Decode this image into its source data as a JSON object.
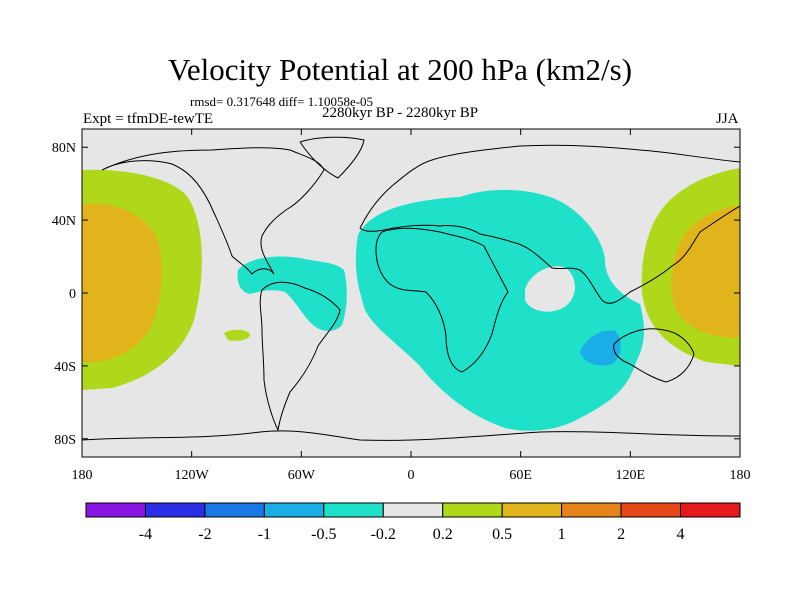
{
  "header": {
    "title": "Velocity Potential at 200 hPa (km2/s)",
    "stats": "rmsd= 0.317648 diff= 1.10058e-05",
    "experiment": "Expt = tfmDE-tewTE",
    "period": "2280kyr BP - 2280kyr BP",
    "season": "JJA"
  },
  "map": {
    "projection": "cylindrical equidistant",
    "lon_range": [
      -180,
      180
    ],
    "lat_range": [
      -90,
      90
    ],
    "lat_ticks": [
      {
        "value": 80,
        "label": "80N"
      },
      {
        "value": 40,
        "label": "40N"
      },
      {
        "value": 0,
        "label": "0"
      },
      {
        "value": -40,
        "label": "40S"
      },
      {
        "value": -80,
        "label": "80S"
      }
    ],
    "lon_ticks": [
      {
        "value": -180,
        "label": "180"
      },
      {
        "value": -120,
        "label": "120W"
      },
      {
        "value": -60,
        "label": "60W"
      },
      {
        "value": 0,
        "label": "0"
      },
      {
        "value": 60,
        "label": "60E"
      },
      {
        "value": 120,
        "label": "120E"
      },
      {
        "value": 180,
        "label": "180"
      }
    ],
    "background_color": "#e6e6e6"
  },
  "colorbar": {
    "colors": [
      "#8a16e6",
      "#2d2de6",
      "#1a78e6",
      "#1aaee6",
      "#1fe0c8",
      "#e6e6e6",
      "#b0d81a",
      "#e0b41a",
      "#e6841a",
      "#e6481a",
      "#e61a1a"
    ],
    "labels": [
      "-4",
      "-2",
      "-1",
      "-0.5",
      "-0.2",
      "0.2",
      "0.5",
      "1",
      "2",
      "4"
    ]
  }
}
